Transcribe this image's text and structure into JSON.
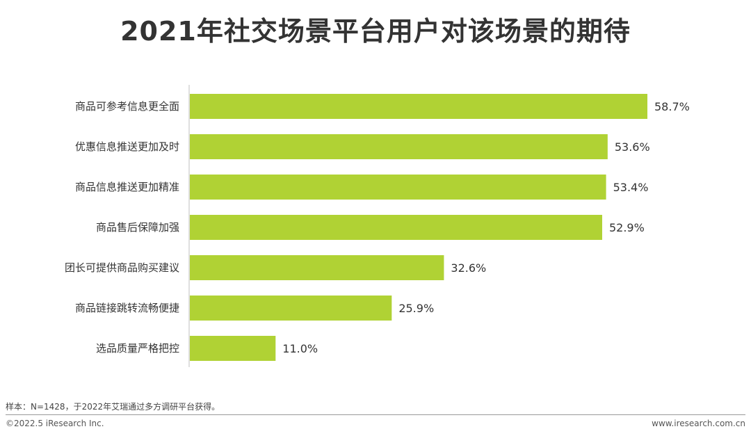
{
  "chart_data": {
    "type": "bar",
    "orientation": "horizontal",
    "title": "2021年社交场景平台用户对该场景的期待",
    "categories": [
      "商品可参考信息更全面",
      "优惠信息推送更加及时",
      "商品信息推送更加精准",
      "商品售后保障加强",
      "团长可提供商品购买建议",
      "商品链接跳转流畅便捷",
      "选品质量严格把控"
    ],
    "values": [
      58.7,
      53.6,
      53.4,
      52.9,
      32.6,
      25.9,
      11.0
    ],
    "value_labels": [
      "58.7%",
      "53.6%",
      "53.4%",
      "52.9%",
      "32.6%",
      "25.9%",
      "11.0%"
    ],
    "unit": "%",
    "xlim": [
      0,
      60
    ],
    "grid": false,
    "legend": "none",
    "bar_color": "#b0d234"
  },
  "footer": {
    "note": "样本：N=1428，于2022年艾瑞通过多方调研平台获得。",
    "copyright": "©2022.5 iResearch Inc.",
    "website": "www.iresearch.com.cn"
  }
}
